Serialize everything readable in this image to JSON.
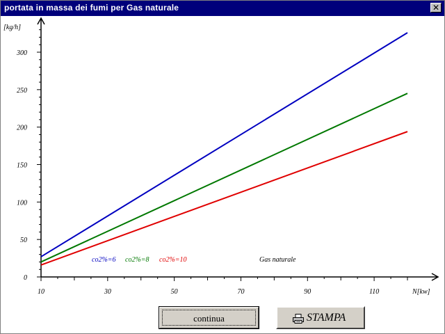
{
  "window": {
    "title": "portata in massa dei fumi per Gas naturale",
    "close_glyph": "✕"
  },
  "chart_data": {
    "type": "line",
    "title": "",
    "ylabel": "[kg/h]",
    "xlabel": "N[kw]",
    "xlim": [
      10,
      120
    ],
    "ylim": [
      0,
      340
    ],
    "xticks": [
      10,
      30,
      50,
      70,
      90,
      110
    ],
    "yticks": [
      0,
      50,
      100,
      150,
      200,
      250,
      300
    ],
    "annotation": "Gas naturale",
    "series": [
      {
        "name": "co2%=6",
        "color": "#0000c0",
        "x": [
          10,
          120
        ],
        "y": [
          27,
          326
        ]
      },
      {
        "name": "co2%=8",
        "color": "#007800",
        "x": [
          10,
          120
        ],
        "y": [
          20,
          245
        ]
      },
      {
        "name": "co2%=10",
        "color": "#e00000",
        "x": [
          10,
          120
        ],
        "y": [
          16,
          194
        ]
      }
    ]
  },
  "buttons": {
    "continua_label": "continua",
    "stampa_label": "STAMPA",
    "stampa_icon": "printer-icon"
  }
}
